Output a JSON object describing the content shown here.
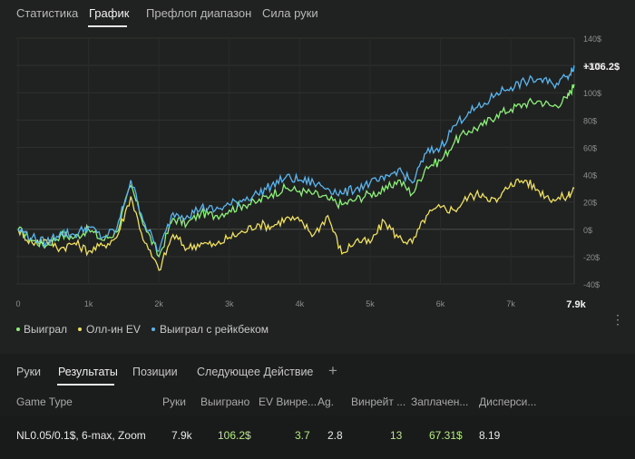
{
  "tabs": [
    "Статистика",
    "График",
    "Префлоп диапазон",
    "Сила руки"
  ],
  "colors": {
    "won": "#8ef07a",
    "allin_ev": "#f0e060",
    "won_rakeback": "#5ab6f0",
    "positive": "#b8e986"
  },
  "chart_data": {
    "type": "line",
    "x_ticks": [
      "0",
      "1k",
      "2k",
      "3k",
      "4k",
      "5k",
      "6k",
      "7k"
    ],
    "x_max_label": "7.9k",
    "y_ticks": [
      "140$",
      "120$",
      "100$",
      "80$",
      "60$",
      "40$",
      "20$",
      "0$",
      "-20$",
      "-40$"
    ],
    "ylim": [
      -40,
      140
    ],
    "xlim": [
      0,
      7900
    ],
    "end_label": "+106.2$",
    "x": [
      0,
      200,
      400,
      600,
      800,
      1000,
      1200,
      1400,
      1600,
      1800,
      2000,
      2200,
      2400,
      2600,
      2800,
      3000,
      3200,
      3400,
      3600,
      3800,
      4000,
      4200,
      4400,
      4600,
      4800,
      5000,
      5200,
      5400,
      5600,
      5800,
      6000,
      6200,
      6400,
      6600,
      6800,
      7000,
      7200,
      7400,
      7600,
      7800,
      7900
    ],
    "series": [
      {
        "name": "Выиграл",
        "values": [
          0,
          -8,
          -12,
          -4,
          -6,
          0,
          -8,
          -2,
          32,
          2,
          -20,
          8,
          4,
          12,
          10,
          14,
          18,
          20,
          26,
          30,
          28,
          26,
          22,
          18,
          22,
          26,
          28,
          36,
          26,
          46,
          50,
          64,
          72,
          76,
          84,
          88,
          92,
          94,
          90,
          96,
          106.2
        ]
      },
      {
        "name": "Олл-ин EV",
        "values": [
          0,
          -10,
          -8,
          -14,
          -10,
          -16,
          -12,
          -6,
          24,
          -10,
          -30,
          -4,
          -14,
          -10,
          -12,
          -6,
          -2,
          4,
          2,
          8,
          6,
          -4,
          10,
          -18,
          -8,
          -10,
          6,
          -6,
          -10,
          10,
          16,
          14,
          24,
          26,
          20,
          34,
          36,
          28,
          22,
          24,
          30
        ]
      },
      {
        "name": "Выиграл с рейкбеком",
        "values": [
          0,
          -6,
          -10,
          -2,
          -4,
          2,
          -6,
          0,
          36,
          4,
          -16,
          12,
          10,
          16,
          14,
          18,
          22,
          26,
          32,
          38,
          36,
          34,
          30,
          26,
          30,
          34,
          36,
          44,
          34,
          56,
          60,
          76,
          86,
          90,
          100,
          104,
          108,
          110,
          106,
          112,
          120
        ]
      }
    ]
  },
  "bottom": {
    "tabs": [
      "Руки",
      "Результаты",
      "Позиции",
      "Следующее Действие"
    ],
    "plus": "+",
    "headers": [
      "Game Type",
      "Руки",
      "Выиграно",
      "EV Винре...",
      "Ag.",
      "Винрейт ...",
      "Заплачен...",
      "Дисперси..."
    ],
    "row": [
      "NL0.05/0.1$, 6-max, Zoom",
      "7.9k",
      "106.2$",
      "3.7",
      "2.8",
      "13",
      "67.31$",
      "8.19"
    ]
  },
  "more_icon": "⋮"
}
